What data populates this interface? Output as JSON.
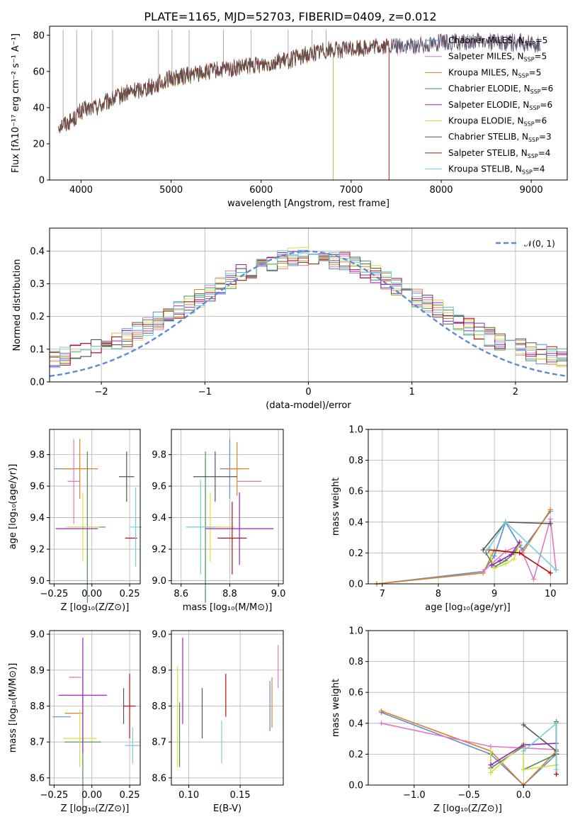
{
  "colors": {
    "Chabrier MILES": "#5b8ad8",
    "Salpeter MILES": "#e377c2",
    "Kroupa MILES": "#d98324",
    "Chabrier ELODIE": "#4e8c54",
    "Salpeter ELODIE": "#a020c8",
    "Kroupa ELODIE": "#d4e040",
    "Chabrier STELIB": "#555555",
    "Salpeter STELIB": "#b01010",
    "Kroupa STELIB": "#6fd0d8",
    "gauss": "#5b8ad8"
  },
  "chart_data": [
    {
      "name": "spectrum",
      "type": "line",
      "title": "PLATE=1165, MJD=52703, FIBERID=0409, z=0.012",
      "xlabel": "wavelength [Angstrom, rest frame]",
      "ylabel": "Flux [fλ10⁻¹⁷ erg cm⁻² s⁻¹ A⁻¹]",
      "xlim": [
        3650,
        9400
      ],
      "ylim": [
        0,
        85
      ],
      "xticks": [
        "4000",
        "5000",
        "6000",
        "7000",
        "8000",
        "9000"
      ],
      "yticks": [
        "0",
        "20",
        "40",
        "60",
        "80"
      ],
      "legend_position": "top-right",
      "series": [
        {
          "name": "Chabrier MILES, N",
          "sub": "SSP",
          "suffix": "=5",
          "end": 9100
        },
        {
          "name": "Salpeter MILES, N",
          "sub": "SSP",
          "suffix": "=5",
          "end": 9100
        },
        {
          "name": "Kroupa MILES, N",
          "sub": "SSP",
          "suffix": "=5",
          "end": 7420
        },
        {
          "name": "Chabrier ELODIE, N",
          "sub": "SSP",
          "suffix": "=6",
          "end": 6800
        },
        {
          "name": "Salpeter ELODIE, N",
          "sub": "SSP",
          "suffix": "=6",
          "end": 6800
        },
        {
          "name": "Kroupa ELODIE, N",
          "sub": "SSP",
          "suffix": "=6",
          "end": 6800
        },
        {
          "name": "Chabrier STELIB, N",
          "sub": "SSP",
          "suffix": "=3",
          "end": 9100
        },
        {
          "name": "Salpeter STELIB, N",
          "sub": "SSP",
          "suffix": "=4",
          "end": 7420
        },
        {
          "name": "Kroupa STELIB, N",
          "sub": "SSP",
          "suffix": "=4",
          "end": 9100
        }
      ],
      "continuum": [
        [
          3750,
          30
        ],
        [
          3900,
          33
        ],
        [
          4000,
          38
        ],
        [
          4200,
          41
        ],
        [
          4500,
          48
        ],
        [
          4800,
          52
        ],
        [
          5000,
          56
        ],
        [
          5300,
          59
        ],
        [
          5600,
          61
        ],
        [
          5900,
          63
        ],
        [
          6100,
          65
        ],
        [
          6300,
          66
        ],
        [
          6500,
          69
        ],
        [
          6700,
          72
        ],
        [
          6900,
          72
        ],
        [
          7100,
          73
        ],
        [
          7400,
          74
        ],
        [
          7700,
          74
        ],
        [
          8000,
          76
        ],
        [
          8300,
          76
        ],
        [
          8600,
          77
        ],
        [
          8900,
          76
        ],
        [
          9100,
          75
        ]
      ]
    },
    {
      "name": "residual-histogram",
      "type": "step",
      "xlabel": "(data-model)/error",
      "ylabel": "Normed distribution",
      "xlim": [
        -2.5,
        2.5
      ],
      "ylim": [
        0,
        0.47
      ],
      "xticks": [
        "−2",
        "−1",
        "0",
        "1",
        "2"
      ],
      "yticks": [
        "0.0",
        "0.1",
        "0.2",
        "0.3",
        "0.4"
      ],
      "gaussian_label": "𝒩(0, 1)",
      "legend_position": "top-right",
      "bin_width": 0.1
    },
    {
      "name": "age-vs-Z",
      "type": "errorbar",
      "xlabel": "Z [log₁₀(Z/Z⊙)]",
      "ylabel": "age  [log₁₀(age/yr)]",
      "xlim": [
        -0.28,
        0.32
      ],
      "ylim": [
        8.98,
        9.96
      ],
      "xticks": [
        "−0.25",
        "0.00",
        "0.25"
      ],
      "yticks": [
        "9.0",
        "9.2",
        "9.4",
        "9.6",
        "9.8"
      ],
      "points": [
        {
          "model": "Chabrier MILES",
          "x": -0.18,
          "xerr": 0.07,
          "y": 9.71,
          "yerr": 0.0
        },
        {
          "model": "Kroupa MILES",
          "x": -0.08,
          "xerr": 0.12,
          "y": 9.71,
          "yerr": 0.19
        },
        {
          "model": "Salpeter MILES",
          "x": -0.12,
          "xerr": 0.04,
          "y": 9.63,
          "yerr": 0.27
        },
        {
          "model": "Chabrier ELODIE",
          "x": -0.03,
          "xerr": 0.12,
          "y": 9.34,
          "yerr": 0.48
        },
        {
          "model": "Kroupa ELODIE",
          "x": -0.06,
          "xerr": 0.11,
          "y": 9.34,
          "yerr": 0.22
        },
        {
          "model": "Salpeter ELODIE",
          "x": -0.1,
          "xerr": 0.14,
          "y": 9.33,
          "yerr": 0.0
        },
        {
          "model": "Chabrier STELIB",
          "x": 0.23,
          "xerr": 0.05,
          "y": 9.66,
          "yerr": 0.16
        },
        {
          "model": "Salpeter STELIB",
          "x": 0.26,
          "xerr": 0.04,
          "y": 9.27,
          "yerr": 0.0
        },
        {
          "model": "Kroupa STELIB",
          "x": 0.29,
          "xerr": 0.04,
          "y": 9.34,
          "yerr": 0.25
        }
      ]
    },
    {
      "name": "age-vs-mass",
      "type": "errorbar",
      "xlabel": "mass [log₁₀(M/M⊙)]",
      "ylabel": "",
      "xlim": [
        8.56,
        9.02
      ],
      "ylim": [
        8.98,
        9.96
      ],
      "xticks": [
        "8.6",
        "8.8",
        "9.0"
      ],
      "yticks": [
        "9.0",
        "9.2",
        "9.4",
        "9.6",
        "9.8"
      ],
      "points": [
        {
          "model": "Chabrier MILES",
          "x": 8.8,
          "xerr": 0.04,
          "y": 9.71,
          "yerr": 0.19
        },
        {
          "model": "Kroupa MILES",
          "x": 8.83,
          "xerr": 0.05,
          "y": 9.71,
          "yerr": 0.17
        },
        {
          "model": "Salpeter MILES",
          "x": 8.88,
          "xerr": 0.05,
          "y": 9.63,
          "yerr": 0.0
        },
        {
          "model": "Chabrier ELODIE",
          "x": 8.7,
          "xerr": 0.08,
          "y": 9.34,
          "yerr": 0.48
        },
        {
          "model": "Kroupa ELODIE",
          "x": 8.72,
          "xerr": 0.1,
          "y": 9.34,
          "yerr": 0.22
        },
        {
          "model": "Salpeter ELODIE",
          "x": 8.84,
          "xerr": 0.14,
          "y": 9.33,
          "yerr": 0.23
        },
        {
          "model": "Chabrier STELIB",
          "x": 8.74,
          "xerr": 0.09,
          "y": 9.66,
          "yerr": 0.16
        },
        {
          "model": "Salpeter STELIB",
          "x": 8.81,
          "xerr": 0.06,
          "y": 9.27,
          "yerr": 0.23
        },
        {
          "model": "Kroupa STELIB",
          "x": 8.68,
          "xerr": 0.06,
          "y": 9.34,
          "yerr": 0.3
        }
      ]
    },
    {
      "name": "mass-weight-vs-age",
      "type": "line",
      "xlabel": "age  [log₁₀(age/yr)]",
      "ylabel": "mass weight",
      "xlim": [
        6.75,
        10.3
      ],
      "ylim": [
        0,
        1.0
      ],
      "xticks": [
        "7",
        "8",
        "9",
        "10"
      ],
      "yticks": [
        "0.0",
        "0.2",
        "0.4",
        "0.6",
        "0.8",
        "1.0"
      ],
      "series": [
        {
          "model": "Chabrier MILES",
          "x": [
            6.9,
            8.8,
            9.0,
            9.2,
            9.5,
            10.0
          ],
          "y": [
            0.0,
            0.08,
            0.18,
            0.4,
            0.22,
            0.47
          ]
        },
        {
          "model": "Kroupa MILES",
          "x": [
            6.9,
            8.8,
            9.0,
            9.2,
            9.5,
            10.0
          ],
          "y": [
            0.0,
            0.07,
            0.22,
            0.21,
            0.2,
            0.48
          ]
        },
        {
          "model": "Salpeter MILES",
          "x": [
            8.8,
            9.2,
            9.45,
            9.7,
            10.0,
            10.1
          ],
          "y": [
            0.08,
            0.21,
            0.25,
            0.03,
            0.42,
            0.09
          ]
        },
        {
          "model": "Chabrier ELODIE",
          "x": [
            8.85,
            9.0,
            9.2,
            9.35,
            9.45
          ],
          "y": [
            0.2,
            0.11,
            0.15,
            0.2,
            0.25
          ]
        },
        {
          "model": "Kroupa ELODIE",
          "x": [
            8.9,
            9.0,
            9.2,
            9.35,
            9.45
          ],
          "y": [
            0.22,
            0.1,
            0.13,
            0.16,
            0.26
          ]
        },
        {
          "model": "Salpeter ELODIE",
          "x": [
            8.95,
            9.1,
            9.3,
            9.45
          ],
          "y": [
            0.12,
            0.15,
            0.19,
            0.27
          ]
        },
        {
          "model": "Chabrier STELIB",
          "x": [
            8.8,
            9.2,
            10.0
          ],
          "y": [
            0.22,
            0.4,
            0.39
          ]
        },
        {
          "model": "Salpeter STELIB",
          "x": [
            8.9,
            9.45,
            10.0
          ],
          "y": [
            0.22,
            0.2,
            0.07
          ]
        },
        {
          "model": "Kroupa STELIB",
          "x": [
            8.9,
            9.2,
            10.1
          ],
          "y": [
            0.23,
            0.4,
            0.09
          ]
        }
      ]
    },
    {
      "name": "mass-vs-Z",
      "type": "errorbar",
      "xlabel": "Z [log₁₀(Z/Z⊙)]",
      "ylabel": "mass [log₁₀(M/M⊙)]",
      "xlim": [
        -0.28,
        0.32
      ],
      "ylim": [
        8.58,
        9.01
      ],
      "xticks": [
        "−0.25",
        "0.00",
        "0.25"
      ],
      "yticks": [
        "8.6",
        "8.7",
        "8.8",
        "8.9",
        "9.0"
      ],
      "points": [
        {
          "model": "Chabrier MILES",
          "x": -0.2,
          "xerr": 0.06,
          "y": 8.77,
          "yerr": 0.0
        },
        {
          "model": "Kroupa MILES",
          "x": -0.12,
          "xerr": 0.06,
          "y": 8.78,
          "yerr": 0.0
        },
        {
          "model": "Salpeter MILES",
          "x": -0.11,
          "xerr": 0.04,
          "y": 8.88,
          "yerr": 0.0
        },
        {
          "model": "Chabrier ELODIE",
          "x": -0.06,
          "xerr": 0.12,
          "y": 8.7,
          "yerr": 0.2
        },
        {
          "model": "Kroupa ELODIE",
          "x": -0.08,
          "xerr": 0.11,
          "y": 8.71,
          "yerr": 0.08
        },
        {
          "model": "Salpeter ELODIE",
          "x": -0.06,
          "xerr": 0.16,
          "y": 8.83,
          "yerr": 0.16
        },
        {
          "model": "Chabrier STELIB",
          "x": 0.21,
          "xerr": 0.0,
          "y": 8.8,
          "yerr": 0.05
        },
        {
          "model": "Salpeter STELIB",
          "x": 0.25,
          "xerr": 0.04,
          "y": 8.8,
          "yerr": 0.09
        },
        {
          "model": "Kroupa STELIB",
          "x": 0.27,
          "xerr": 0.05,
          "y": 8.69,
          "yerr": 0.05
        }
      ]
    },
    {
      "name": "mass-vs-ebv",
      "type": "errorbar",
      "xlabel": "E(B-V)",
      "ylabel": "",
      "xlim": [
        0.083,
        0.192
      ],
      "ylim": [
        8.58,
        9.01
      ],
      "xticks": [
        "0.10",
        "0.15"
      ],
      "yticks": [
        "8.6",
        "8.7",
        "8.8",
        "8.9",
        "9.0"
      ],
      "points": [
        {
          "model": "Kroupa ELODIE",
          "x": 0.089,
          "xerr": 0.0,
          "y": 8.77,
          "yerr": 0.14
        },
        {
          "model": "Chabrier ELODIE",
          "x": 0.091,
          "xerr": 0.0,
          "y": 8.72,
          "yerr": 0.09
        },
        {
          "model": "Salpeter ELODIE",
          "x": 0.094,
          "xerr": 0.0,
          "y": 8.87,
          "yerr": 0.12
        },
        {
          "model": "Chabrier STELIB",
          "x": 0.113,
          "xerr": 0.0,
          "y": 8.78,
          "yerr": 0.07
        },
        {
          "model": "Kroupa STELIB",
          "x": 0.132,
          "xerr": 0.0,
          "y": 8.7,
          "yerr": 0.06
        },
        {
          "model": "Salpeter STELIB",
          "x": 0.136,
          "xerr": 0.0,
          "y": 8.83,
          "yerr": 0.06
        },
        {
          "model": "Chabrier MILES",
          "x": 0.179,
          "xerr": 0.0,
          "y": 8.8,
          "yerr": 0.07
        },
        {
          "model": "Kroupa MILES",
          "x": 0.181,
          "xerr": 0.0,
          "y": 8.81,
          "yerr": 0.07
        },
        {
          "model": "Salpeter MILES",
          "x": 0.187,
          "xerr": 0.0,
          "y": 8.91,
          "yerr": 0.06
        }
      ]
    },
    {
      "name": "mass-weight-vs-Z",
      "type": "line",
      "xlabel": "Z [log₁₀(Z/Z⊙)]",
      "ylabel": "mass weight",
      "xlim": [
        -1.42,
        0.4
      ],
      "ylim": [
        0,
        1.0
      ],
      "xticks": [
        "−1.0",
        "−0.5",
        "0.0"
      ],
      "yticks": [
        "0.0",
        "0.2",
        "0.4",
        "0.6",
        "0.8",
        "1.0"
      ],
      "series": [
        {
          "model": "Chabrier MILES",
          "x": [
            -1.3,
            -0.3,
            0.0,
            0.3
          ],
          "y": [
            0.47,
            0.2,
            0.0,
            0.2
          ]
        },
        {
          "model": "Kroupa MILES",
          "x": [
            -1.3,
            -0.3,
            0.0,
            0.3
          ],
          "y": [
            0.48,
            0.22,
            0.0,
            0.22
          ]
        },
        {
          "model": "Salpeter MILES",
          "x": [
            -1.3,
            -0.3,
            0.0,
            0.3
          ],
          "y": [
            0.4,
            0.25,
            0.24,
            0.23
          ]
        },
        {
          "model": "Chabrier ELODIE",
          "x": [
            -0.3,
            -0.3,
            0.0,
            0.0,
            0.3
          ],
          "y": [
            0.2,
            0.11,
            0.25,
            0.1,
            0.2
          ]
        },
        {
          "model": "Kroupa ELODIE",
          "x": [
            -0.3,
            -0.3,
            0.0,
            0.0,
            0.3
          ],
          "y": [
            0.22,
            0.08,
            0.27,
            0.1,
            0.13
          ]
        },
        {
          "model": "Salpeter ELODIE",
          "x": [
            -0.3,
            0.0,
            0.3
          ],
          "y": [
            0.13,
            0.26,
            0.27
          ]
        },
        {
          "model": "Chabrier STELIB",
          "x": [
            0.0,
            0.3,
            0.3
          ],
          "y": [
            0.39,
            0.22,
            0.41
          ]
        },
        {
          "model": "Salpeter STELIB",
          "x": [
            0.3,
            0.3,
            0.3
          ],
          "y": [
            0.4,
            0.2,
            0.07
          ]
        },
        {
          "model": "Kroupa STELIB",
          "x": [
            0.0,
            0.3,
            0.3
          ],
          "y": [
            0.22,
            0.4,
            0.1
          ]
        }
      ]
    }
  ]
}
